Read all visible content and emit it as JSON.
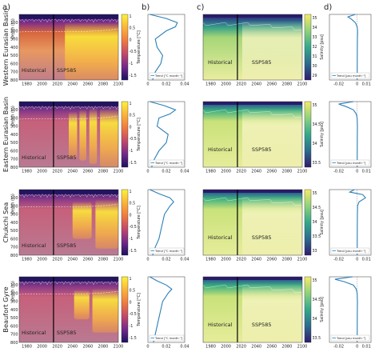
{
  "panel_letters": [
    "a)",
    "b)",
    "c)",
    "d)"
  ],
  "row_labels": [
    "Western Eurasian Basin",
    "Eastern Eurasian Basin",
    "Chukchi Sea",
    "Beaufort Gyre"
  ],
  "period_labels": [
    "Historical",
    "SSP585"
  ],
  "depth_axis_label": "Depth (m)",
  "hovmoller_x_ticks": [
    "1980",
    "2000",
    "2020",
    "2040",
    "2060",
    "2080",
    "2100"
  ],
  "depth_ticks": [
    "0",
    "100",
    "200",
    "300",
    "400",
    "500",
    "600",
    "700",
    "800"
  ],
  "temp_cbar_label": "Temperature [°C]",
  "temp_cbar_ticks": [
    "1",
    "0.5",
    "0",
    "-0.5",
    "-1",
    "-1.5"
  ],
  "sal_cbar_label": "Salinity [psu]",
  "sal_cbar_ticks_rows": [
    [
      "35",
      "34",
      "33",
      "32",
      "31",
      "30",
      "29"
    ],
    [
      "35",
      "34.5",
      "34",
      "33.5"
    ],
    [
      "35",
      "34.5",
      "34",
      "33.5",
      "33"
    ],
    [
      "35",
      "34.5",
      "34",
      "33.5"
    ]
  ],
  "temp_trend_label": "Trend [°C month⁻¹]",
  "temp_trend_ticks": [
    "0",
    "0.02",
    "0.04"
  ],
  "sal_trend_label": "Trend [psu month⁻¹]",
  "sal_trend_ticks": [
    "-0.02",
    "0",
    "0.01"
  ],
  "colors": {
    "warm_high": "#f9ec3a",
    "warm_low": "#5b2a86",
    "sal_high": "#f3e67a",
    "sal_low": "#2b1d6e",
    "trend_line": "#2a7fb8"
  },
  "chart_data": [
    {
      "type": "heatmap",
      "panel": "a",
      "variable": "temperature",
      "rows": [
        "Western Eurasian Basin",
        "Eastern Eurasian Basin",
        "Chukchi Sea",
        "Beaufort Gyre"
      ],
      "xlim": [
        1970,
        2100
      ],
      "ylim": [
        800,
        0
      ],
      "colorbar_range": [
        -1.8,
        1
      ],
      "xlabel": "",
      "ylabel": "Depth (m)"
    },
    {
      "type": "line",
      "panel": "b",
      "title": "",
      "xlabel": "Trend [°C month⁻¹]",
      "xlim": [
        0,
        0.04
      ],
      "ylim": [
        800,
        0
      ],
      "series": [
        {
          "row": "Western Eurasian Basin",
          "depth": [
            0,
            50,
            100,
            150,
            200,
            300,
            400,
            500,
            600,
            700,
            800
          ],
          "trend": [
            0.002,
            0.02,
            0.032,
            0.03,
            0.02,
            0.008,
            0.01,
            0.016,
            0.014,
            0.008,
            0.005
          ]
        },
        {
          "row": "Eastern Eurasian Basin",
          "depth": [
            0,
            50,
            100,
            150,
            200,
            300,
            400,
            500,
            600,
            700,
            800
          ],
          "trend": [
            0.002,
            0.018,
            0.03,
            0.024,
            0.012,
            0.01,
            0.022,
            0.02,
            0.012,
            0.007,
            0.004
          ]
        },
        {
          "row": "Chukchi Sea",
          "depth": [
            0,
            50,
            100,
            150,
            200,
            300,
            400,
            500,
            600,
            700,
            800
          ],
          "trend": [
            0.002,
            0.012,
            0.024,
            0.028,
            0.024,
            0.018,
            0.016,
            0.014,
            0.012,
            0.008,
            0.005
          ]
        },
        {
          "row": "Beaufort Gyre",
          "depth": [
            0,
            50,
            100,
            150,
            200,
            300,
            400,
            500,
            600,
            700,
            800
          ],
          "trend": [
            0.002,
            0.01,
            0.02,
            0.026,
            0.022,
            0.016,
            0.014,
            0.012,
            0.01,
            0.008,
            0.006
          ]
        }
      ]
    },
    {
      "type": "heatmap",
      "panel": "c",
      "variable": "salinity",
      "rows": [
        "Western Eurasian Basin",
        "Eastern Eurasian Basin",
        "Chukchi Sea",
        "Beaufort Gyre"
      ],
      "xlim": [
        1970,
        2100
      ],
      "ylim": [
        800,
        0
      ],
      "colorbar_ranges": [
        [
          29,
          35
        ],
        [
          33.2,
          35
        ],
        [
          33,
          35
        ],
        [
          33.3,
          35
        ]
      ],
      "xlabel": "",
      "ylabel": "Depth (m)"
    },
    {
      "type": "line",
      "panel": "d",
      "xlabel": "Trend [psu month⁻¹]",
      "xlim": [
        -0.03,
        0.015
      ],
      "ylim": [
        800,
        0
      ],
      "series": [
        {
          "row": "Western Eurasian Basin",
          "depth": [
            0,
            30,
            60,
            100,
            150,
            200,
            300,
            400,
            600,
            800
          ],
          "trend": [
            -0.002,
            -0.01,
            -0.006,
            -0.002,
            0.0,
            0.0005,
            0.0003,
            0.0002,
            0.0001,
            0.0
          ]
        },
        {
          "row": "Eastern Eurasian Basin",
          "depth": [
            0,
            30,
            60,
            100,
            150,
            200,
            300,
            400,
            600,
            800
          ],
          "trend": [
            -0.004,
            -0.02,
            -0.012,
            -0.004,
            -0.001,
            0.0,
            0.0003,
            0.0002,
            0.0001,
            0.0
          ]
        },
        {
          "row": "Chukchi Sea",
          "depth": [
            0,
            30,
            60,
            100,
            150,
            200,
            300,
            400,
            600,
            800
          ],
          "trend": [
            -0.003,
            -0.008,
            0.006,
            0.009,
            0.002,
            0.0005,
            0.0003,
            0.0002,
            0.0001,
            0.0
          ]
        },
        {
          "row": "Beaufort Gyre",
          "depth": [
            0,
            30,
            60,
            100,
            150,
            200,
            300,
            400,
            600,
            800
          ],
          "trend": [
            -0.005,
            -0.024,
            -0.014,
            -0.004,
            -0.001,
            0.0,
            0.0003,
            0.0002,
            0.0001,
            0.0
          ]
        }
      ]
    }
  ]
}
